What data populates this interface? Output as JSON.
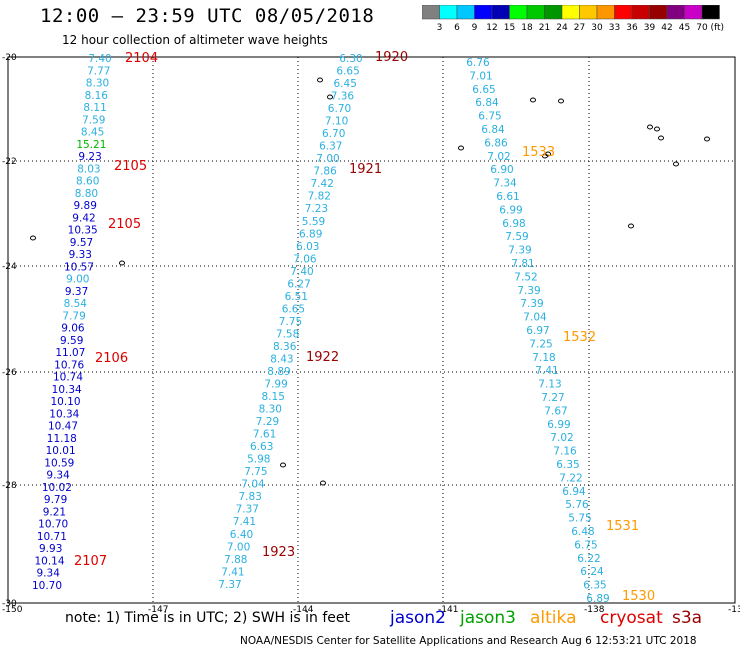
{
  "title": "12:00 – 23:59 UTC 08/05/2018",
  "subtitle": "12 hour collection of altimeter wave heights",
  "colorbar": {
    "colors": [
      "#808080",
      "#00ffff",
      "#00c8ff",
      "#0000ff",
      "#0000b4",
      "#00ff00",
      "#00c800",
      "#009600",
      "#ffff00",
      "#ffc800",
      "#ff9600",
      "#ff0000",
      "#c80000",
      "#960000",
      "#800080",
      "#c800c8",
      "#000000"
    ],
    "labels": [
      "3",
      "6",
      "9",
      "12",
      "15",
      "18",
      "21",
      "24",
      "27",
      "30",
      "33",
      "36",
      "39",
      "42",
      "45",
      "70"
    ],
    "unit": "(ft)"
  },
  "axes": {
    "lat_labels": [
      "-20",
      "-22",
      "-24",
      "-26",
      "-28",
      "-30"
    ],
    "lon_labels": [
      "-150",
      "-147",
      "-144",
      "-141",
      "-138",
      "-13"
    ]
  },
  "note": "note:  1) Time is in UTC;  2) SWH is in feet",
  "credit": "NOAA/NESDIS Center for Satellite Applications and Research    Aug  6 12:53:21 UTC 2018",
  "legend": [
    {
      "name": "jason2",
      "color": "#0000cd"
    },
    {
      "name": "jason3",
      "color": "#00a000"
    },
    {
      "name": "altika",
      "color": "#ff9900"
    },
    {
      "name": "cryosat",
      "color": "#dd0000"
    },
    {
      "name": "s3a",
      "color": "#990000"
    }
  ],
  "tracks": [
    {
      "values": [
        {
          "v": "7.40",
          "c": "#2ab0e0"
        },
        {
          "v": "7.77",
          "c": "#2ab0e0"
        },
        {
          "v": "8.30",
          "c": "#2ab0e0"
        },
        {
          "v": "8.16",
          "c": "#2ab0e0"
        },
        {
          "v": "8.11",
          "c": "#2ab0e0"
        },
        {
          "v": "7.59",
          "c": "#2ab0e0"
        },
        {
          "v": "8.45",
          "c": "#2ab0e0"
        },
        {
          "v": "15.21",
          "c": "#00b400"
        },
        {
          "v": "9.23",
          "c": "#0000cd"
        },
        {
          "v": "8.03",
          "c": "#2ab0e0"
        },
        {
          "v": "8.60",
          "c": "#2ab0e0"
        },
        {
          "v": "8.80",
          "c": "#2ab0e0"
        },
        {
          "v": "9.89",
          "c": "#0000cd"
        },
        {
          "v": "9.42",
          "c": "#0000cd"
        },
        {
          "v": "10.35",
          "c": "#0000cd"
        },
        {
          "v": "9.57",
          "c": "#0000cd"
        },
        {
          "v": "9.33",
          "c": "#0000cd"
        },
        {
          "v": "10.57",
          "c": "#0000cd"
        },
        {
          "v": "9.00",
          "c": "#2ab0e0"
        },
        {
          "v": "9.37",
          "c": "#0000cd"
        },
        {
          "v": "8.54",
          "c": "#2ab0e0"
        },
        {
          "v": "7.79",
          "c": "#2ab0e0"
        },
        {
          "v": "9.06",
          "c": "#0000cd"
        },
        {
          "v": "9.59",
          "c": "#0000cd"
        },
        {
          "v": "11.07",
          "c": "#0000cd"
        },
        {
          "v": "10.76",
          "c": "#0000cd"
        },
        {
          "v": "10.74",
          "c": "#0000cd"
        },
        {
          "v": "10.34",
          "c": "#0000cd"
        },
        {
          "v": "10.10",
          "c": "#0000cd"
        },
        {
          "v": "10.34",
          "c": "#0000cd"
        },
        {
          "v": "10.47",
          "c": "#0000cd"
        },
        {
          "v": "11.18",
          "c": "#0000cd"
        },
        {
          "v": "10.01",
          "c": "#0000cd"
        },
        {
          "v": "10.59",
          "c": "#0000cd"
        },
        {
          "v": "9.34",
          "c": "#0000cd"
        },
        {
          "v": "10.02",
          "c": "#0000cd"
        },
        {
          "v": "9.79",
          "c": "#0000cd"
        },
        {
          "v": "9.21",
          "c": "#0000cd"
        },
        {
          "v": "10.70",
          "c": "#0000cd"
        },
        {
          "v": "10.71",
          "c": "#0000cd"
        },
        {
          "v": "9.93",
          "c": "#0000cd"
        },
        {
          "v": "10.14",
          "c": "#0000cd"
        },
        {
          "v": "9.34",
          "c": "#0000cd"
        },
        {
          "v": "10.70",
          "c": "#0000cd"
        }
      ]
    },
    {
      "values": [
        {
          "v": "6.30",
          "c": "#2ab0e0"
        },
        {
          "v": "6.65",
          "c": "#2ab0e0"
        },
        {
          "v": "6.45",
          "c": "#2ab0e0"
        },
        {
          "v": "7.36",
          "c": "#2ab0e0"
        },
        {
          "v": "6.70",
          "c": "#2ab0e0"
        },
        {
          "v": "7.10",
          "c": "#2ab0e0"
        },
        {
          "v": "6.70",
          "c": "#2ab0e0"
        },
        {
          "v": "6.37",
          "c": "#2ab0e0"
        },
        {
          "v": "7.00",
          "c": "#2ab0e0"
        },
        {
          "v": "7.86",
          "c": "#2ab0e0"
        },
        {
          "v": "7.42",
          "c": "#2ab0e0"
        },
        {
          "v": "7.82",
          "c": "#2ab0e0"
        },
        {
          "v": "7.23",
          "c": "#2ab0e0"
        },
        {
          "v": "5.59",
          "c": "#2ab0e0"
        },
        {
          "v": "6.89",
          "c": "#2ab0e0"
        },
        {
          "v": "6.03",
          "c": "#2ab0e0"
        },
        {
          "v": "7.06",
          "c": "#2ab0e0"
        },
        {
          "v": "7.40",
          "c": "#2ab0e0"
        },
        {
          "v": "6.27",
          "c": "#2ab0e0"
        },
        {
          "v": "6.51",
          "c": "#2ab0e0"
        },
        {
          "v": "6.65",
          "c": "#2ab0e0"
        },
        {
          "v": "7.75",
          "c": "#2ab0e0"
        },
        {
          "v": "7.58",
          "c": "#2ab0e0"
        },
        {
          "v": "8.36",
          "c": "#2ab0e0"
        },
        {
          "v": "8.43",
          "c": "#2ab0e0"
        },
        {
          "v": "8.89",
          "c": "#2ab0e0"
        },
        {
          "v": "7.99",
          "c": "#2ab0e0"
        },
        {
          "v": "8.15",
          "c": "#2ab0e0"
        },
        {
          "v": "8.30",
          "c": "#2ab0e0"
        },
        {
          "v": "7.29",
          "c": "#2ab0e0"
        },
        {
          "v": "7.61",
          "c": "#2ab0e0"
        },
        {
          "v": "6.63",
          "c": "#2ab0e0"
        },
        {
          "v": "5.98",
          "c": "#2ab0e0"
        },
        {
          "v": "7.75",
          "c": "#2ab0e0"
        },
        {
          "v": "7.04",
          "c": "#2ab0e0"
        },
        {
          "v": "7.83",
          "c": "#2ab0e0"
        },
        {
          "v": "7.37",
          "c": "#2ab0e0"
        },
        {
          "v": "7.41",
          "c": "#2ab0e0"
        },
        {
          "v": "6.40",
          "c": "#2ab0e0"
        },
        {
          "v": "7.00",
          "c": "#2ab0e0"
        },
        {
          "v": "7.88",
          "c": "#2ab0e0"
        },
        {
          "v": "7.41",
          "c": "#2ab0e0"
        },
        {
          "v": "7.37",
          "c": "#2ab0e0"
        }
      ]
    },
    {
      "values": [
        {
          "v": "6.76",
          "c": "#2ab0e0"
        },
        {
          "v": "7.01",
          "c": "#2ab0e0"
        },
        {
          "v": "6.65",
          "c": "#2ab0e0"
        },
        {
          "v": "6.84",
          "c": "#2ab0e0"
        },
        {
          "v": "6.75",
          "c": "#2ab0e0"
        },
        {
          "v": "6.84",
          "c": "#2ab0e0"
        },
        {
          "v": "6.86",
          "c": "#2ab0e0"
        },
        {
          "v": "7.02",
          "c": "#2ab0e0"
        },
        {
          "v": "6.90",
          "c": "#2ab0e0"
        },
        {
          "v": "7.34",
          "c": "#2ab0e0"
        },
        {
          "v": "6.61",
          "c": "#2ab0e0"
        },
        {
          "v": "6.99",
          "c": "#2ab0e0"
        },
        {
          "v": "6.98",
          "c": "#2ab0e0"
        },
        {
          "v": "7.59",
          "c": "#2ab0e0"
        },
        {
          "v": "7.39",
          "c": "#2ab0e0"
        },
        {
          "v": "7.81",
          "c": "#2ab0e0"
        },
        {
          "v": "7.52",
          "c": "#2ab0e0"
        },
        {
          "v": "7.39",
          "c": "#2ab0e0"
        },
        {
          "v": "7.39",
          "c": "#2ab0e0"
        },
        {
          "v": "7.04",
          "c": "#2ab0e0"
        },
        {
          "v": "6.97",
          "c": "#2ab0e0"
        },
        {
          "v": "7.25",
          "c": "#2ab0e0"
        },
        {
          "v": "7.18",
          "c": "#2ab0e0"
        },
        {
          "v": "7.41",
          "c": "#2ab0e0"
        },
        {
          "v": "7.13",
          "c": "#2ab0e0"
        },
        {
          "v": "7.27",
          "c": "#2ab0e0"
        },
        {
          "v": "7.67",
          "c": "#2ab0e0"
        },
        {
          "v": "6.99",
          "c": "#2ab0e0"
        },
        {
          "v": "7.02",
          "c": "#2ab0e0"
        },
        {
          "v": "7.16",
          "c": "#2ab0e0"
        },
        {
          "v": "6.35",
          "c": "#2ab0e0"
        },
        {
          "v": "7.22",
          "c": "#2ab0e0"
        },
        {
          "v": "6.94",
          "c": "#2ab0e0"
        },
        {
          "v": "5.76",
          "c": "#2ab0e0"
        },
        {
          "v": "5.75",
          "c": "#2ab0e0"
        },
        {
          "v": "6.48",
          "c": "#2ab0e0"
        },
        {
          "v": "6.75",
          "c": "#2ab0e0"
        },
        {
          "v": "6.22",
          "c": "#2ab0e0"
        },
        {
          "v": "6.24",
          "c": "#2ab0e0"
        },
        {
          "v": "6.35",
          "c": "#2ab0e0"
        },
        {
          "v": "6.89",
          "c": "#2ab0e0"
        }
      ]
    }
  ],
  "time_labels": [
    {
      "t": "2104",
      "c": "#dd0000"
    },
    {
      "t": "2105",
      "c": "#dd0000"
    },
    {
      "t": "2105",
      "c": "#dd0000"
    },
    {
      "t": "2106",
      "c": "#dd0000"
    },
    {
      "t": "2107",
      "c": "#dd0000"
    },
    {
      "t": "1920",
      "c": "#990000"
    },
    {
      "t": "1921",
      "c": "#990000"
    },
    {
      "t": "1922",
      "c": "#990000"
    },
    {
      "t": "1923",
      "c": "#990000"
    },
    {
      "t": "1533",
      "c": "#ff9900"
    },
    {
      "t": "1532",
      "c": "#ff9900"
    },
    {
      "t": "1531",
      "c": "#ff9900"
    },
    {
      "t": "1530",
      "c": "#ff9900"
    }
  ]
}
